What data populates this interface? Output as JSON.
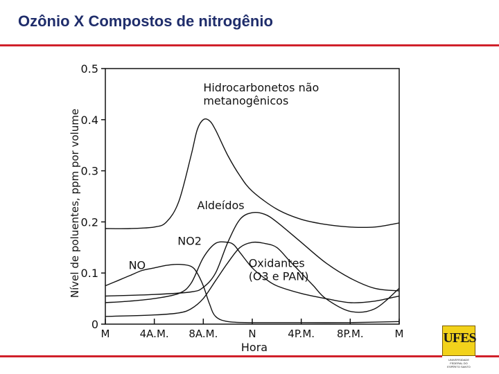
{
  "slide": {
    "title": "Ozônio X Compostos de nitrogênio"
  },
  "colors": {
    "title": "#1f2d6b",
    "rule": "#d0202a",
    "ink": "#111111",
    "logo_fill": "#f2d21b"
  },
  "logo": {
    "text": "UFES",
    "lines": [
      "UNIVERSIDADE",
      "FEDERAL DO",
      "ESPÍRITO SANTO"
    ]
  },
  "chart_data": {
    "type": "line",
    "xlabel": "Hora",
    "ylabel": "Nível de poluentes, ppm por volume",
    "xlim": [
      0,
      24
    ],
    "ylim": [
      0,
      0.5
    ],
    "x_ticks": [
      {
        "value": 0,
        "label": "M"
      },
      {
        "value": 4,
        "label": "4A.M."
      },
      {
        "value": 8,
        "label": "8A.M."
      },
      {
        "value": 12,
        "label": "N"
      },
      {
        "value": 16,
        "label": "4P.M."
      },
      {
        "value": 20,
        "label": "8P.M."
      },
      {
        "value": 24,
        "label": "M"
      }
    ],
    "y_ticks": [
      {
        "value": 0,
        "label": "0"
      },
      {
        "value": 0.1,
        "label": "0.1"
      },
      {
        "value": 0.2,
        "label": "0.2"
      },
      {
        "value": 0.3,
        "label": "0.3"
      },
      {
        "value": 0.4,
        "label": "0.4"
      },
      {
        "value": 0.5,
        "label": "0.5"
      }
    ],
    "grid": false,
    "series": [
      {
        "name": "Hidrocarbonetos não metanogênicos",
        "label_lines": [
          "Hidrocarbonetos não",
          "metanogênicos"
        ],
        "label_at": [
          8,
          0.455
        ],
        "x": [
          0,
          2,
          4,
          5,
          6,
          7,
          7.5,
          8,
          8.5,
          9,
          10,
          11,
          12,
          14,
          16,
          18,
          20,
          22,
          24
        ],
        "y": [
          0.187,
          0.187,
          0.19,
          0.2,
          0.24,
          0.33,
          0.38,
          0.4,
          0.398,
          0.38,
          0.33,
          0.29,
          0.26,
          0.225,
          0.205,
          0.195,
          0.19,
          0.19,
          0.198
        ]
      },
      {
        "name": "Aldeídos",
        "label_lines": [
          "Aldeídos"
        ],
        "label_at": [
          7.5,
          0.225
        ],
        "x": [
          0,
          4,
          7,
          8,
          9,
          10,
          11,
          12,
          13,
          14,
          16,
          18,
          20,
          22,
          24
        ],
        "y": [
          0.055,
          0.058,
          0.063,
          0.072,
          0.1,
          0.16,
          0.205,
          0.218,
          0.215,
          0.2,
          0.16,
          0.12,
          0.09,
          0.07,
          0.065
        ]
      },
      {
        "name": "NO2",
        "label_lines": [
          "NO2"
        ],
        "label_at": [
          5.9,
          0.155
        ],
        "x": [
          0,
          2,
          4,
          6,
          7,
          8,
          9,
          10,
          10.5,
          11,
          12,
          13,
          14,
          16,
          18,
          20,
          22,
          24
        ],
        "y": [
          0.042,
          0.045,
          0.05,
          0.06,
          0.08,
          0.13,
          0.158,
          0.16,
          0.155,
          0.14,
          0.11,
          0.09,
          0.075,
          0.06,
          0.05,
          0.042,
          0.045,
          0.055
        ]
      },
      {
        "name": "NO",
        "label_lines": [
          "NO"
        ],
        "label_at": [
          1.9,
          0.108
        ],
        "x": [
          0,
          1,
          2,
          3,
          4,
          5,
          6,
          7,
          7.5,
          8,
          8.5,
          9,
          10,
          12,
          16,
          20,
          24
        ],
        "y": [
          0.075,
          0.085,
          0.095,
          0.105,
          0.11,
          0.115,
          0.117,
          0.113,
          0.1,
          0.075,
          0.04,
          0.015,
          0.005,
          0.003,
          0.003,
          0.003,
          0.005
        ]
      },
      {
        "name": "Oxidantes (O3 e PAN)",
        "label_lines": [
          "Oxidantes",
          "(O3 e PAN)"
        ],
        "label_at": [
          11.7,
          0.112
        ],
        "x": [
          0,
          4,
          6,
          7,
          8,
          9,
          10,
          11,
          12,
          13,
          14,
          15,
          16,
          17,
          18,
          20,
          22,
          24
        ],
        "y": [
          0.015,
          0.018,
          0.022,
          0.03,
          0.05,
          0.085,
          0.12,
          0.15,
          0.16,
          0.158,
          0.15,
          0.125,
          0.1,
          0.075,
          0.05,
          0.025,
          0.03,
          0.07
        ]
      }
    ]
  }
}
